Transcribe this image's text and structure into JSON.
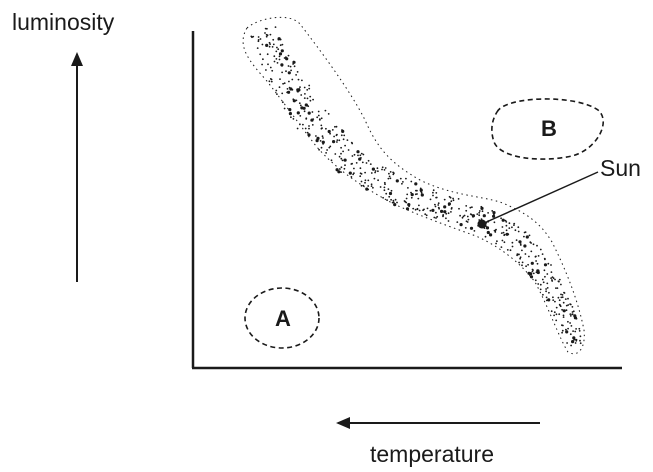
{
  "labels": {
    "y_axis": "luminosity",
    "x_axis": "temperature",
    "region_a": "A",
    "region_b": "B",
    "sun": "Sun"
  },
  "colors": {
    "ink": "#1a1a1a",
    "background": "#ffffff"
  },
  "arrows": {
    "luminosity_direction": "up",
    "temperature_direction": "left"
  }
}
